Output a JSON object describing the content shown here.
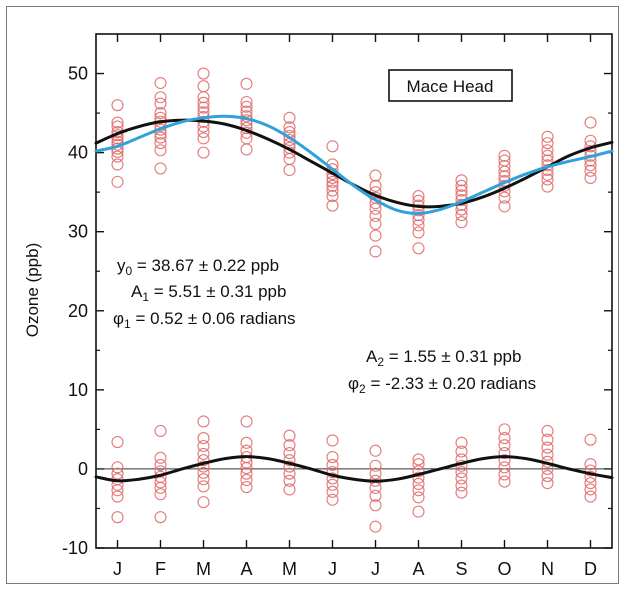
{
  "chart_data": {
    "type": "scatter",
    "title": "",
    "xlabel": "",
    "ylabel": "Ozone (ppb)",
    "legend_label": "Mace Head",
    "legend_position": "top-right",
    "grid": false,
    "xlim": [
      0.5,
      12.5
    ],
    "ylim": [
      -10,
      55
    ],
    "y_ticks": [
      -10,
      0,
      10,
      20,
      30,
      40,
      50
    ],
    "x_ticks": [
      1,
      2,
      3,
      4,
      5,
      6,
      7,
      8,
      9,
      10,
      11,
      12
    ],
    "categories": [
      "J",
      "F",
      "M",
      "A",
      "M",
      "J",
      "J",
      "A",
      "S",
      "O",
      "N",
      "D"
    ],
    "colors": {
      "points": "#e06a6a",
      "fit_black": "#111111",
      "fit_blue": "#2fa3d9",
      "zero_line": "#333333"
    },
    "observations_upper": [
      [
        36.3,
        38.5,
        39.5,
        40.1,
        40.5,
        41.0,
        41.4,
        41.8,
        42.2,
        42.6,
        43.3,
        43.8,
        46.0
      ],
      [
        38.0,
        40.3,
        41.2,
        41.9,
        42.4,
        42.9,
        43.4,
        43.9,
        44.4,
        45.0,
        46.2,
        47.0,
        48.8
      ],
      [
        40.0,
        41.8,
        42.6,
        43.3,
        43.9,
        44.5,
        45.1,
        45.7,
        46.3,
        47.0,
        48.4,
        50.0
      ],
      [
        40.4,
        41.8,
        42.5,
        43.1,
        43.6,
        44.1,
        44.6,
        45.2,
        45.8,
        46.4,
        48.7
      ],
      [
        37.8,
        39.2,
        40.0,
        40.6,
        41.1,
        41.6,
        42.1,
        42.6,
        43.2,
        44.4
      ],
      [
        33.3,
        34.5,
        35.2,
        35.8,
        36.3,
        36.8,
        37.3,
        37.9,
        38.5,
        40.8
      ],
      [
        27.5,
        29.5,
        31.0,
        32.0,
        32.9,
        33.6,
        34.3,
        35.0,
        35.8,
        37.1
      ],
      [
        27.9,
        29.9,
        30.8,
        31.5,
        32.1,
        32.7,
        33.3,
        33.9,
        34.5
      ],
      [
        31.2,
        32.1,
        32.8,
        33.4,
        34.0,
        34.6,
        35.2,
        35.8,
        36.5
      ],
      [
        33.2,
        34.3,
        35.1,
        35.8,
        36.4,
        37.0,
        37.6,
        38.3,
        39.0,
        39.6
      ],
      [
        35.7,
        36.6,
        37.2,
        37.8,
        38.4,
        39.0,
        39.6,
        40.3,
        41.2,
        42.0
      ],
      [
        36.8,
        37.7,
        38.4,
        39.0,
        39.6,
        40.2,
        40.8,
        41.5,
        43.8
      ]
    ],
    "observations_lower": [
      [
        -6.1,
        -3.5,
        -2.7,
        -2.0,
        -1.3,
        -0.6,
        0.2,
        3.4
      ],
      [
        -6.1,
        -3.2,
        -2.4,
        -1.7,
        -1.0,
        -0.3,
        0.5,
        1.4,
        4.8
      ],
      [
        -4.2,
        -2.2,
        -1.3,
        -0.5,
        0.3,
        1.1,
        1.9,
        2.9,
        3.9,
        6.0
      ],
      [
        -2.3,
        -1.4,
        -0.6,
        0.1,
        0.8,
        1.5,
        2.3,
        3.3,
        6.0
      ],
      [
        -2.6,
        -1.5,
        -0.6,
        0.3,
        1.1,
        2.0,
        3.0,
        4.2
      ],
      [
        -3.9,
        -2.9,
        -2.0,
        -1.2,
        -0.4,
        0.5,
        1.5,
        3.6
      ],
      [
        -7.3,
        -4.6,
        -3.4,
        -2.4,
        -1.5,
        -0.6,
        0.4,
        2.3
      ],
      [
        -5.4,
        -3.6,
        -2.7,
        -1.9,
        -1.1,
        -0.3,
        0.6,
        1.2
      ],
      [
        -3.0,
        -2.1,
        -1.2,
        -0.4,
        0.4,
        1.2,
        2.2,
        3.3
      ],
      [
        -1.6,
        -0.7,
        0.2,
        1.1,
        2.0,
        3.0,
        3.9,
        5.0
      ],
      [
        -1.8,
        -0.9,
        0.0,
        0.9,
        1.8,
        2.7,
        3.7,
        4.8
      ],
      [
        -3.5,
        -2.6,
        -1.8,
        -1.0,
        -0.2,
        0.6,
        3.7
      ]
    ],
    "fit_black_upper": [
      [
        0.5,
        41.2
      ],
      [
        1,
        42.4
      ],
      [
        1.5,
        43.3
      ],
      [
        2,
        43.9
      ],
      [
        2.5,
        44.1
      ],
      [
        3,
        44.0
      ],
      [
        3.5,
        43.6
      ],
      [
        4,
        42.8
      ],
      [
        4.5,
        41.7
      ],
      [
        5,
        40.4
      ],
      [
        5.5,
        38.9
      ],
      [
        6,
        37.4
      ],
      [
        6.5,
        35.9
      ],
      [
        7,
        34.6
      ],
      [
        7.5,
        33.7
      ],
      [
        8,
        33.2
      ],
      [
        8.5,
        33.2
      ],
      [
        9,
        33.6
      ],
      [
        9.5,
        34.4
      ],
      [
        10,
        35.5
      ],
      [
        10.5,
        36.8
      ],
      [
        11,
        38.2
      ],
      [
        11.5,
        39.6
      ],
      [
        12,
        40.6
      ],
      [
        12.5,
        41.3
      ]
    ],
    "fit_blue_upper": [
      [
        0.5,
        40.2
      ],
      [
        1,
        40.8
      ],
      [
        1.5,
        41.9
      ],
      [
        2,
        43.0
      ],
      [
        2.5,
        43.9
      ],
      [
        3,
        44.4
      ],
      [
        3.5,
        44.6
      ],
      [
        4,
        44.3
      ],
      [
        4.5,
        43.4
      ],
      [
        5,
        41.9
      ],
      [
        5.5,
        40.0
      ],
      [
        6,
        37.9
      ],
      [
        6.5,
        35.8
      ],
      [
        7,
        34.0
      ],
      [
        7.5,
        32.7
      ],
      [
        8,
        32.3
      ],
      [
        8.5,
        32.8
      ],
      [
        9,
        33.8
      ],
      [
        9.5,
        35.0
      ],
      [
        10,
        36.2
      ],
      [
        10.5,
        37.3
      ],
      [
        11,
        38.2
      ],
      [
        11.5,
        38.9
      ],
      [
        12,
        39.5
      ],
      [
        12.5,
        40.2
      ]
    ],
    "fit_black_lower": [
      [
        0.5,
        -1.0
      ],
      [
        1,
        -1.5
      ],
      [
        1.5,
        -1.3
      ],
      [
        2,
        -0.8
      ],
      [
        2.5,
        0.0
      ],
      [
        3,
        0.7
      ],
      [
        3.5,
        1.3
      ],
      [
        4,
        1.55
      ],
      [
        4.5,
        1.3
      ],
      [
        5,
        0.7
      ],
      [
        5.5,
        0.0
      ],
      [
        6,
        -0.8
      ],
      [
        6.5,
        -1.3
      ],
      [
        7,
        -1.55
      ],
      [
        7.5,
        -1.3
      ],
      [
        8,
        -0.7
      ],
      [
        8.5,
        0.0
      ],
      [
        9,
        0.7
      ],
      [
        9.5,
        1.3
      ],
      [
        10,
        1.55
      ],
      [
        10.5,
        1.3
      ],
      [
        11,
        0.7
      ],
      [
        11.5,
        0.0
      ],
      [
        12,
        -0.6
      ],
      [
        12.5,
        -1.1
      ]
    ],
    "annotations": {
      "y0": {
        "symbol": "y",
        "sub": "0",
        "text": " = 38.67 ± 0.22 ppb"
      },
      "a1": {
        "symbol": "A",
        "sub": "1",
        "text": " = 5.51 ± 0.31 ppb"
      },
      "phi1": {
        "symbol": "φ",
        "sub": "1",
        "text": " = 0.52 ± 0.06 radians"
      },
      "a2": {
        "symbol": "A",
        "sub": "2",
        "text": " = 1.55 ± 0.31 ppb"
      },
      "phi2": {
        "symbol": "φ",
        "sub": "2",
        "text": " = -2.33 ± 0.20 radians"
      }
    }
  }
}
